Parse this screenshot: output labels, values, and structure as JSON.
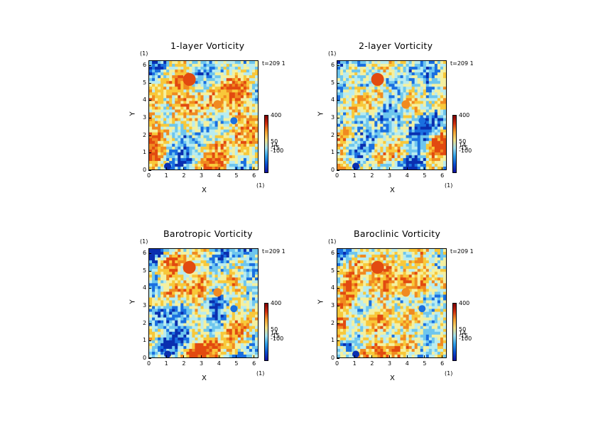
{
  "colors": {
    "field_stops": [
      "#0a2fb0",
      "#1a6fe0",
      "#6ec6ee",
      "#b9ecf0",
      "#f4f0a0",
      "#f8c83a",
      "#f08a20",
      "#e24a10"
    ],
    "colorbar_stops": [
      "#1010a0",
      "#0a4fd0",
      "#2f9fe8",
      "#9fe0f0",
      "#f5e080",
      "#f5a030",
      "#d03010",
      "#800000"
    ]
  },
  "panels": [
    {
      "title": "1-layer Vorticity",
      "time_label": "t=209 1",
      "unit_x": "(1)",
      "unit_y": "(1)",
      "xlabel": "X",
      "ylabel": "Y",
      "xticks": [
        "0",
        "1",
        "2",
        "3",
        "4",
        "5",
        "6"
      ],
      "yticks": [
        "0",
        "1",
        "2",
        "3",
        "4",
        "5",
        "6"
      ],
      "cbar_labels": [
        "400",
        "50",
        "14",
        "-15",
        "-100"
      ],
      "warm_bias": 0.15
    },
    {
      "title": "2-layer Vorticity",
      "time_label": "t=209 1",
      "unit_x": "(1)",
      "unit_y": "(1)",
      "xlabel": "X",
      "ylabel": "Y",
      "xticks": [
        "0",
        "1",
        "2",
        "3",
        "4",
        "5",
        "6"
      ],
      "yticks": [
        "0",
        "1",
        "2",
        "3",
        "4",
        "5",
        "6"
      ],
      "cbar_labels": [
        "400",
        "50",
        "14",
        "-15",
        "-100"
      ],
      "warm_bias": -0.12
    },
    {
      "title": "Barotropic Vorticity",
      "time_label": "t=209 1",
      "unit_x": "(1)",
      "unit_y": "(1)",
      "xlabel": "X",
      "ylabel": "Y",
      "xticks": [
        "0",
        "1",
        "2",
        "3",
        "4",
        "5",
        "6"
      ],
      "yticks": [
        "0",
        "1",
        "2",
        "3",
        "4",
        "5",
        "6"
      ],
      "cbar_labels": [
        "400",
        "50",
        "14",
        "-15",
        "-100"
      ],
      "warm_bias": 0.02
    },
    {
      "title": "Baroclinic Vorticity",
      "time_label": "t=209 1",
      "unit_x": "(1)",
      "unit_y": "(1)",
      "xlabel": "X",
      "ylabel": "Y",
      "xticks": [
        "0",
        "1",
        "2",
        "3",
        "4",
        "5",
        "6"
      ],
      "yticks": [
        "0",
        "1",
        "2",
        "3",
        "4",
        "5",
        "6"
      ],
      "cbar_labels": [
        "400",
        "50",
        "14",
        "-15",
        "-100"
      ],
      "warm_bias": 0.08
    }
  ],
  "chart_data": {
    "type": "heatmap",
    "panels": [
      "1-layer Vorticity",
      "2-layer Vorticity",
      "Barotropic Vorticity",
      "Baroclinic Vorticity"
    ],
    "xlabel": "X",
    "ylabel": "Y",
    "xlim": [
      0,
      6.28
    ],
    "ylim": [
      0,
      6.28
    ],
    "xticks": [
      0,
      1,
      2,
      3,
      4,
      5,
      6
    ],
    "yticks": [
      0,
      1,
      2,
      3,
      4,
      5,
      6
    ],
    "colorbar_ticks": [
      400,
      50,
      14,
      -15,
      -100
    ],
    "time_label": "t=209 1",
    "legend_placement": "right"
  }
}
